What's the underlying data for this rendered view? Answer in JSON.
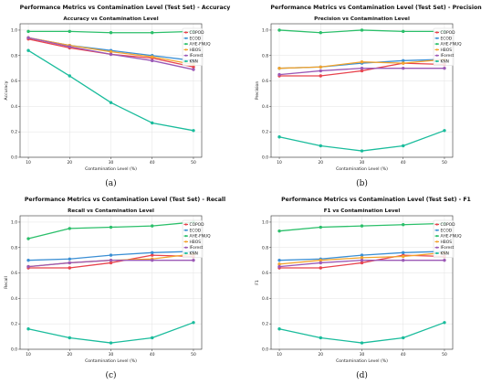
{
  "chart_data": [
    {
      "type": "line",
      "suptitle": "Performance Metrics vs Contamination Level (Test Set) - Accuracy",
      "title": "Accuracy vs Contamination Level",
      "xlabel": "Contamination Level (%)",
      "ylabel": "Accuracy",
      "caption": "(a)",
      "x": [
        10,
        20,
        30,
        40,
        50
      ],
      "xlim": [
        8,
        52
      ],
      "ylim": [
        0.0,
        1.05
      ],
      "yticks": [
        0.0,
        0.2,
        0.4,
        0.6,
        0.8,
        1.0
      ],
      "grid": true,
      "legend_position": "top-right",
      "series": [
        {
          "name": "COPOD",
          "color": "#e8434d",
          "values": [
            0.93,
            0.86,
            0.81,
            0.78,
            0.71
          ]
        },
        {
          "name": "ECOD",
          "color": "#3b8fd4",
          "values": [
            0.94,
            0.88,
            0.84,
            0.8,
            0.76
          ]
        },
        {
          "name": "AHE-FNUQ",
          "color": "#2bbf6a",
          "values": [
            0.99,
            0.99,
            0.98,
            0.98,
            0.99
          ]
        },
        {
          "name": "HBOS",
          "color": "#f2a32c",
          "values": [
            0.94,
            0.88,
            0.83,
            0.79,
            0.73
          ]
        },
        {
          "name": "IForest",
          "color": "#9b59b6",
          "values": [
            0.94,
            0.87,
            0.81,
            0.76,
            0.69
          ]
        },
        {
          "name": "KNN",
          "color": "#1abc9c",
          "values": [
            0.84,
            0.64,
            0.43,
            0.27,
            0.21
          ]
        }
      ]
    },
    {
      "type": "line",
      "suptitle": "Performance Metrics vs Contamination Level (Test Set) - Precision",
      "title": "Precision vs Contamination Level",
      "xlabel": "Contamination Level (%)",
      "ylabel": "Precision",
      "caption": "(b)",
      "x": [
        10,
        20,
        30,
        40,
        50
      ],
      "xlim": [
        8,
        52
      ],
      "ylim": [
        0.0,
        1.05
      ],
      "yticks": [
        0.0,
        0.2,
        0.4,
        0.6,
        0.8,
        1.0
      ],
      "grid": true,
      "legend_position": "right",
      "series": [
        {
          "name": "COPOD",
          "color": "#e8434d",
          "values": [
            0.64,
            0.64,
            0.68,
            0.74,
            0.73
          ]
        },
        {
          "name": "ECOD",
          "color": "#3b8fd4",
          "values": [
            0.7,
            0.71,
            0.74,
            0.76,
            0.77
          ]
        },
        {
          "name": "AHE-FNUQ",
          "color": "#2bbf6a",
          "values": [
            1.0,
            0.98,
            1.0,
            0.99,
            0.99
          ]
        },
        {
          "name": "HBOS",
          "color": "#f2a32c",
          "values": [
            0.7,
            0.71,
            0.75,
            0.74,
            0.77
          ]
        },
        {
          "name": "IForest",
          "color": "#9b59b6",
          "values": [
            0.65,
            0.68,
            0.7,
            0.7,
            0.7
          ]
        },
        {
          "name": "KNN",
          "color": "#1abc9c",
          "values": [
            0.16,
            0.09,
            0.05,
            0.09,
            0.21
          ]
        }
      ]
    },
    {
      "type": "line",
      "suptitle": "Performance Metrics vs Contamination Level (Test Set) - Recall",
      "title": "Recall vs Contamination Level",
      "xlabel": "Contamination Level (%)",
      "ylabel": "Recall",
      "caption": "(c)",
      "x": [
        10,
        20,
        30,
        40,
        50
      ],
      "xlim": [
        8,
        52
      ],
      "ylim": [
        0.0,
        1.05
      ],
      "yticks": [
        0.0,
        0.2,
        0.4,
        0.6,
        0.8,
        1.0
      ],
      "grid": true,
      "legend_position": "right",
      "series": [
        {
          "name": "COPOD",
          "color": "#e8434d",
          "values": [
            0.64,
            0.64,
            0.68,
            0.74,
            0.73
          ]
        },
        {
          "name": "ECOD",
          "color": "#3b8fd4",
          "values": [
            0.7,
            0.71,
            0.74,
            0.76,
            0.77
          ]
        },
        {
          "name": "AHE-FNUQ",
          "color": "#2bbf6a",
          "values": [
            0.87,
            0.95,
            0.96,
            0.97,
            1.0
          ]
        },
        {
          "name": "HBOS",
          "color": "#f2a32c",
          "values": [
            0.65,
            0.68,
            0.7,
            0.71,
            0.75
          ]
        },
        {
          "name": "IForest",
          "color": "#9b59b6",
          "values": [
            0.65,
            0.68,
            0.7,
            0.7,
            0.7
          ]
        },
        {
          "name": "KNN",
          "color": "#1abc9c",
          "values": [
            0.16,
            0.09,
            0.05,
            0.09,
            0.21
          ]
        }
      ]
    },
    {
      "type": "line",
      "suptitle": "Performance Metrics vs Contamination Level (Test Set) - F1",
      "title": "F1 vs Contamination Level",
      "xlabel": "Contamination Level (%)",
      "ylabel": "F1",
      "caption": "(d)",
      "x": [
        10,
        20,
        30,
        40,
        50
      ],
      "xlim": [
        8,
        52
      ],
      "ylim": [
        0.0,
        1.05
      ],
      "yticks": [
        0.0,
        0.2,
        0.4,
        0.6,
        0.8,
        1.0
      ],
      "grid": true,
      "legend_position": "right",
      "series": [
        {
          "name": "COPOD",
          "color": "#e8434d",
          "values": [
            0.64,
            0.64,
            0.68,
            0.74,
            0.73
          ]
        },
        {
          "name": "ECOD",
          "color": "#3b8fd4",
          "values": [
            0.7,
            0.71,
            0.74,
            0.76,
            0.77
          ]
        },
        {
          "name": "AHE-FNUQ",
          "color": "#2bbf6a",
          "values": [
            0.93,
            0.96,
            0.97,
            0.98,
            0.99
          ]
        },
        {
          "name": "HBOS",
          "color": "#f2a32c",
          "values": [
            0.67,
            0.7,
            0.72,
            0.73,
            0.76
          ]
        },
        {
          "name": "IForest",
          "color": "#9b59b6",
          "values": [
            0.65,
            0.68,
            0.7,
            0.7,
            0.7
          ]
        },
        {
          "name": "KNN",
          "color": "#1abc9c",
          "values": [
            0.16,
            0.09,
            0.05,
            0.09,
            0.21
          ]
        }
      ]
    }
  ]
}
